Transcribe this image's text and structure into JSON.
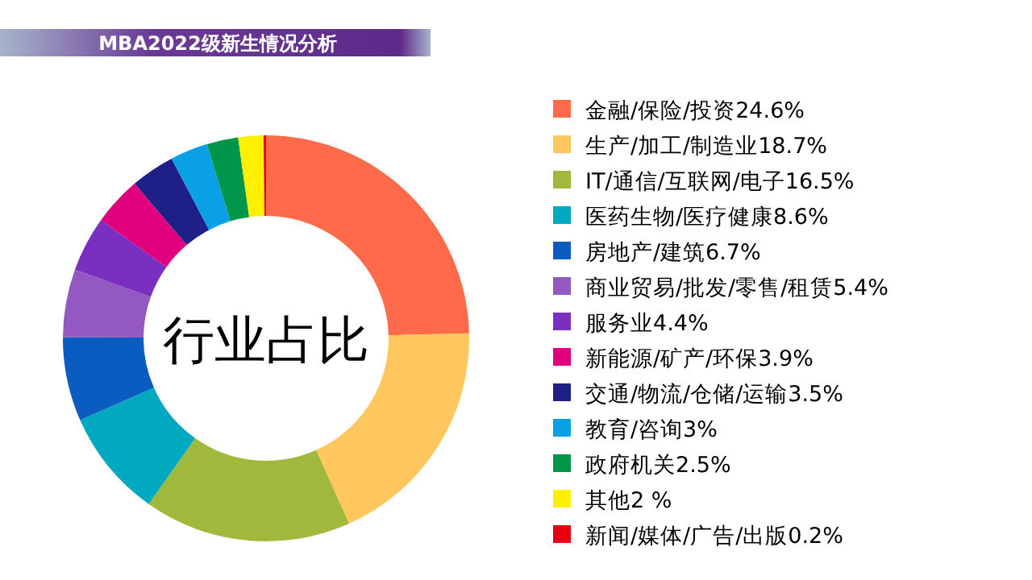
{
  "chart_data": {
    "type": "donut",
    "title": "MBA2022级新生情况分析",
    "annotations": [
      "行业占比"
    ],
    "categories": [
      "金融/保险/投资24.6%",
      "生产/加工/制造业18.7%",
      "IT/通信/互联网/电子16.5%",
      "医药生物/医疗健康8.6%",
      "房地产/建筑6.7%",
      "商业贸易/批发/零售/租赁5.4%",
      "服务业4.4%",
      "新能源/矿产/环保3.9%",
      "交通/物流/仓储/运输3.5%",
      "教育/咨询3%",
      "政府机关2.5%",
      "其他2 %",
      "新闻/媒体/广告/出版0.2%"
    ],
    "values": [
      24.6,
      18.7,
      16.5,
      8.6,
      6.7,
      5.4,
      4.4,
      3.9,
      3.5,
      3,
      2.5,
      2,
      0.2
    ],
    "colors": [
      "#ff6a4a",
      "#ffc75e",
      "#a0b93c",
      "#00a8c0",
      "#0a5cc0",
      "#9459c0",
      "#7b2fc0",
      "#e0007e",
      "#1e2088",
      "#0aa0e6",
      "#00964a",
      "#fff000",
      "#e60012"
    ],
    "legend": "right"
  }
}
